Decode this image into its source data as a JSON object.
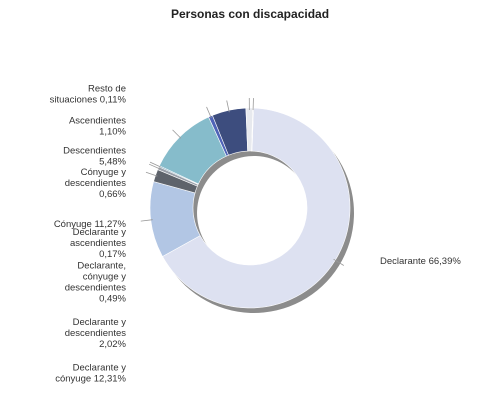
{
  "chart_data": {
    "type": "pie",
    "variant": "donut",
    "title": "Personas con discapacidad",
    "legend": "none",
    "slices": [
      {
        "label": [
          "Declarante 66,39%"
        ],
        "value": 66.39,
        "color": "#dde1f1"
      },
      {
        "label": [
          "Declarante y",
          "cónyuge 12,31%"
        ],
        "value": 12.31,
        "color": "#b2c6e4"
      },
      {
        "label": [
          "Declarante y",
          "descendientes",
          "2,02%"
        ],
        "value": 2.02,
        "color": "#5e636b"
      },
      {
        "label": [
          "Declarante,",
          "cónyuge y",
          "descendientes",
          "0,49%"
        ],
        "value": 0.49,
        "color": "#9aa0aa"
      },
      {
        "label": [
          "Declarante y",
          "ascendientes",
          "0,17%"
        ],
        "value": 0.17,
        "color": "#5b8fa8"
      },
      {
        "label": [
          "Cónyuge 11,27%"
        ],
        "value": 11.27,
        "color": "#86bccb"
      },
      {
        "label": [
          "Cónyuge y",
          "descendientes",
          "0,66%"
        ],
        "value": 0.66,
        "color": "#4f64b8"
      },
      {
        "label": [
          "Descendientes",
          "5,48%"
        ],
        "value": 5.48,
        "color": "#3d4d7e"
      },
      {
        "label": [
          "Ascendientes",
          "1,10%"
        ],
        "value": 1.1,
        "color": "#e7e9ee"
      },
      {
        "label": [
          "Resto de",
          "situaciones 0,11%"
        ],
        "value": 0.11,
        "color": "#6f6f7a"
      }
    ]
  }
}
